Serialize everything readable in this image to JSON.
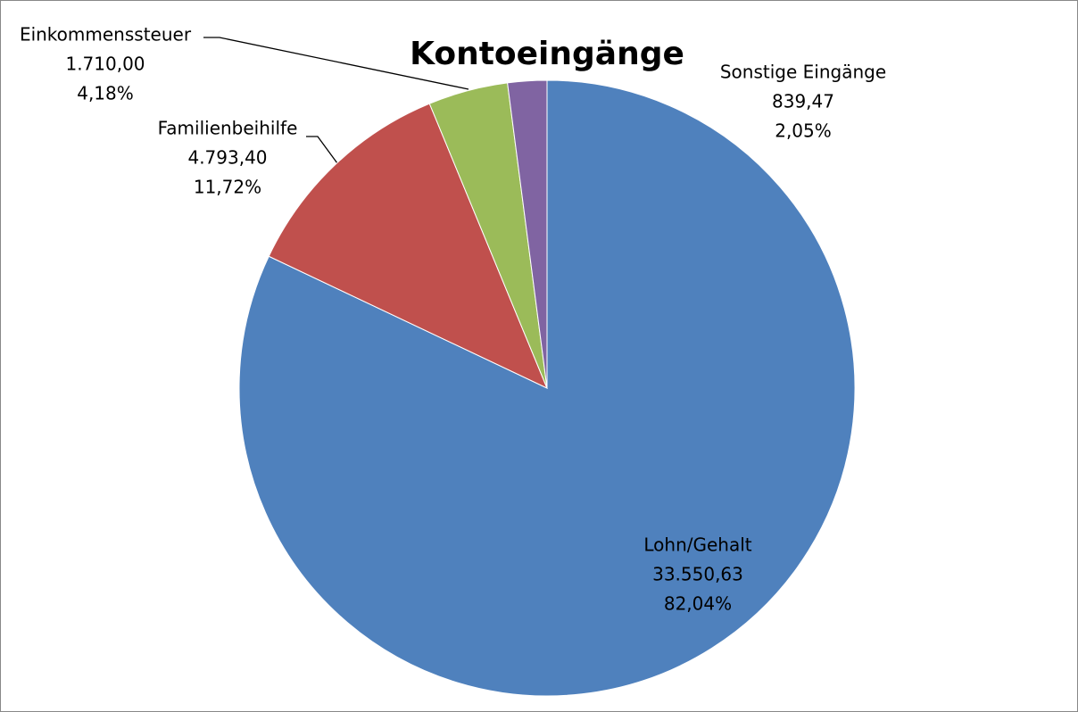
{
  "chart_data": {
    "type": "pie",
    "title": "Kontoeingänge",
    "categories": [
      "Lohn/Gehalt",
      "Familienbeihilfe",
      "Einkommenssteuer",
      "Sonstige Eingänge"
    ],
    "values": [
      33550.63,
      4793.4,
      1710.0,
      839.47
    ],
    "value_labels": [
      "33.550,63",
      "4.793,40",
      "1.710,00",
      "839,47"
    ],
    "percent_labels": [
      "82,04%",
      "11,72%",
      "4,18%",
      "2,05%"
    ],
    "colors": [
      "#4f81bd",
      "#c0504d",
      "#9bbb59",
      "#8064a2"
    ]
  }
}
